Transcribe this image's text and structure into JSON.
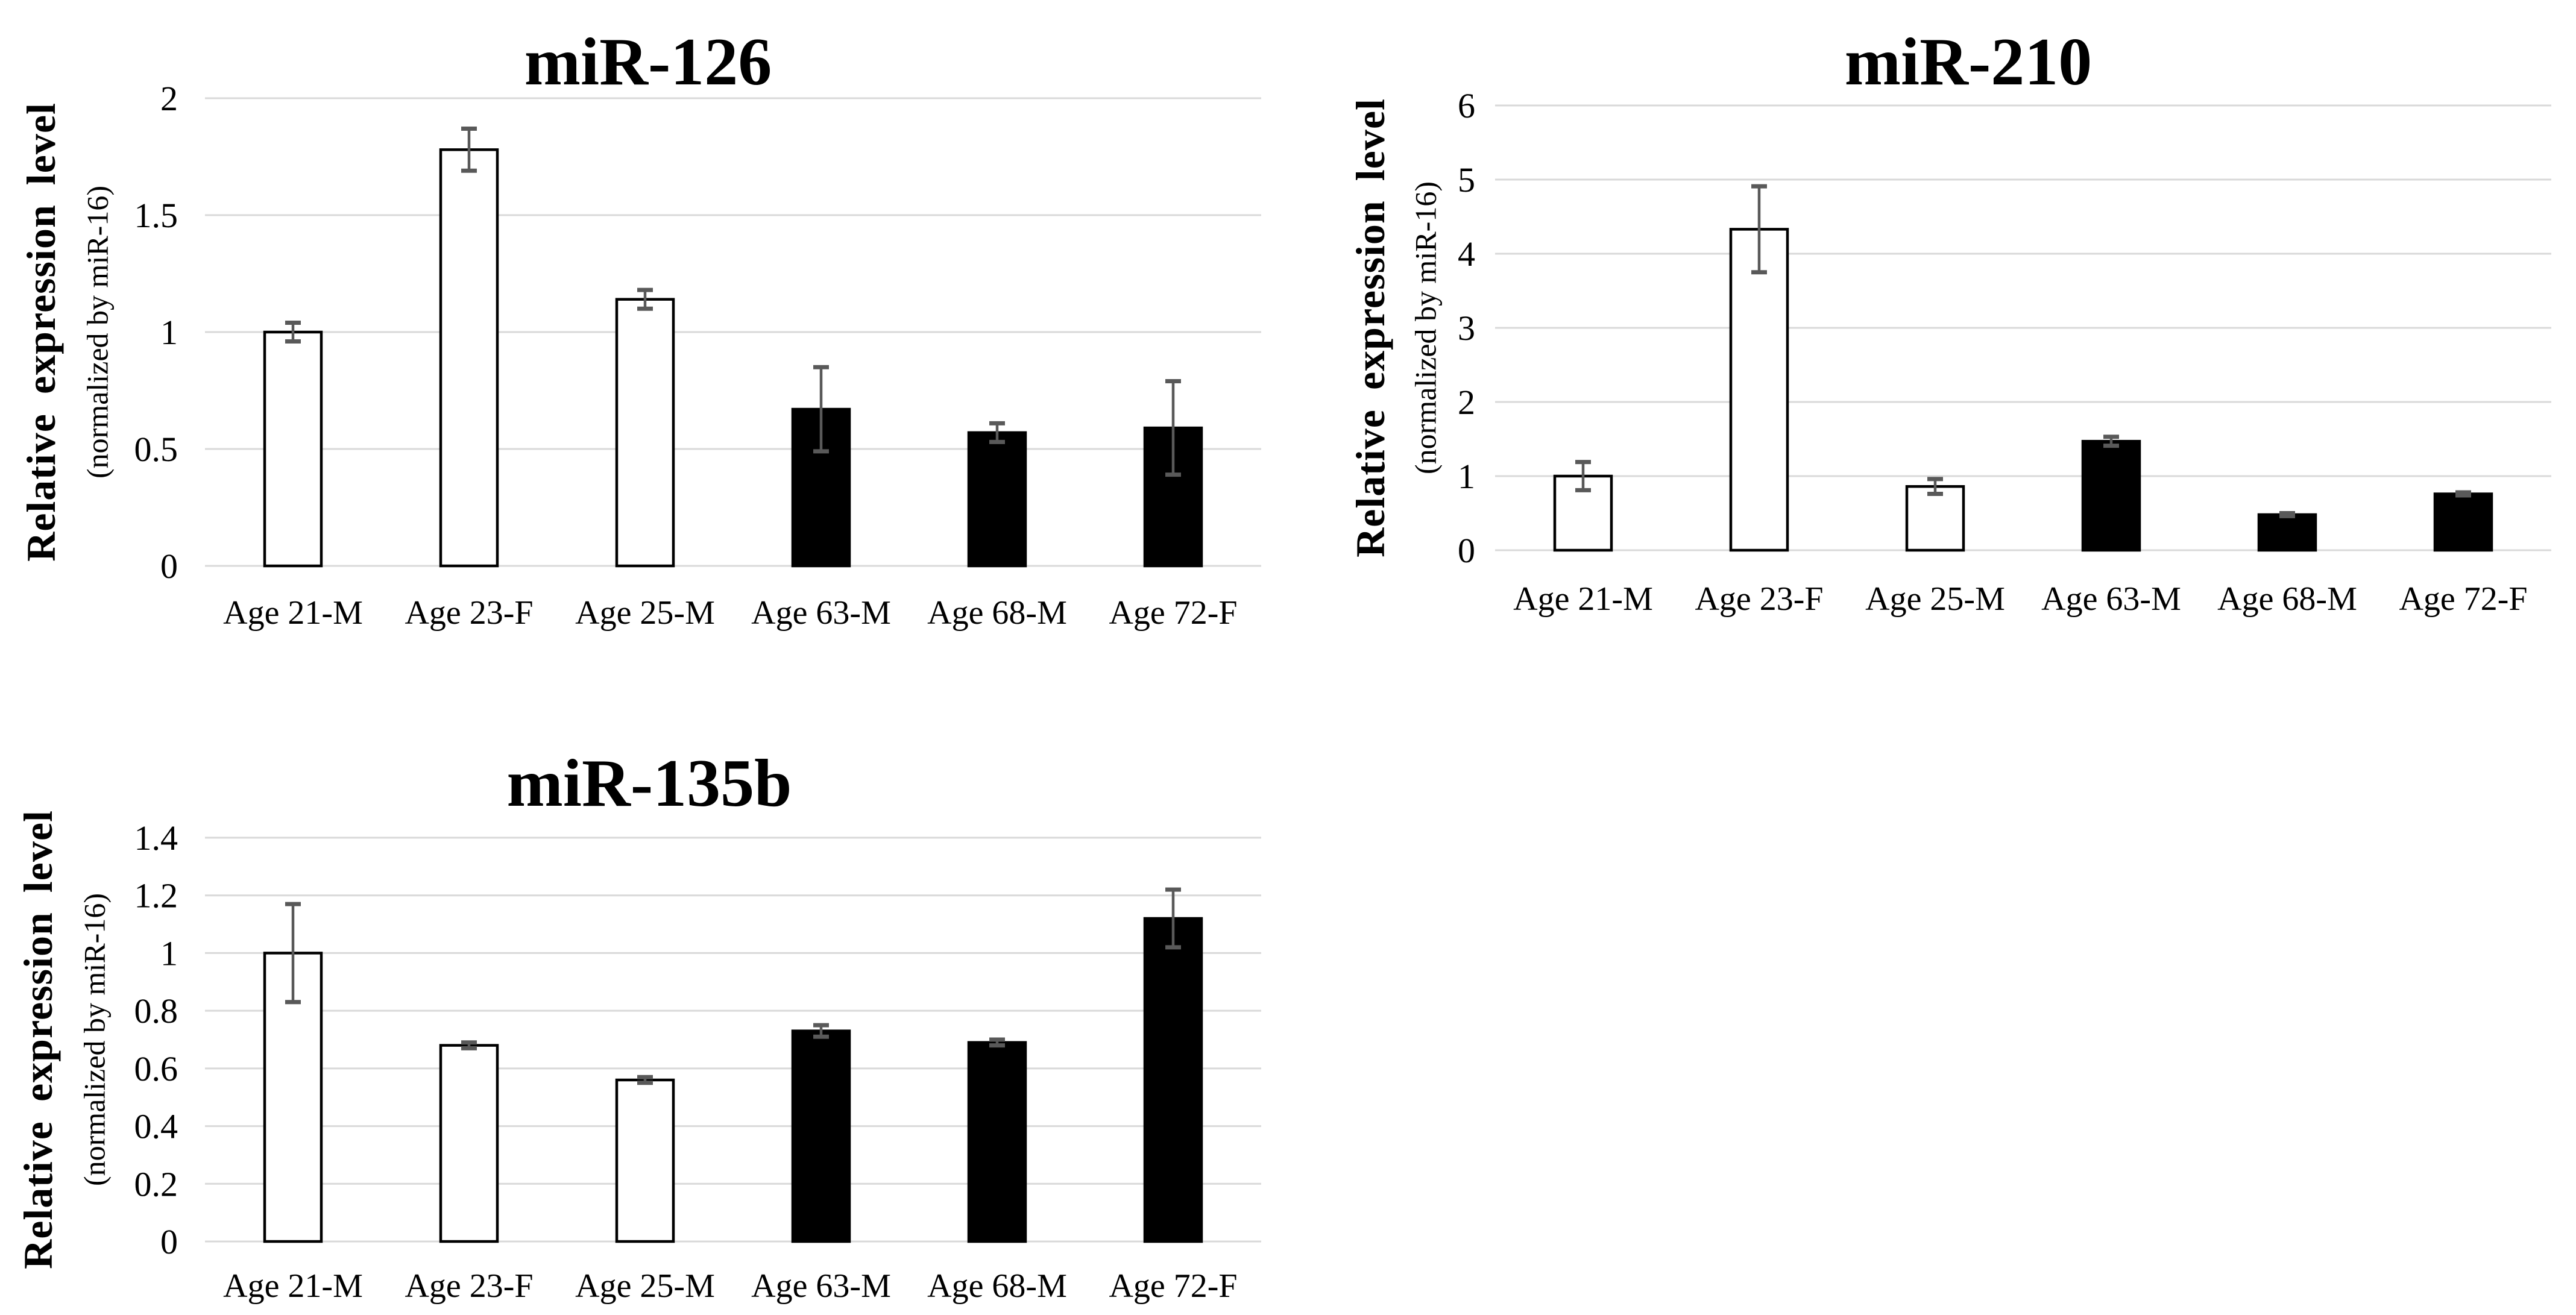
{
  "figure": {
    "background": "#ffffff",
    "description_charts": [
      "miR-126",
      "miR-210",
      "miR-135b"
    ]
  },
  "style": {
    "bar_border_color": "#000000",
    "young_fill": "#ffffff",
    "old_fill": "#000000",
    "error_bar_color": "#595959",
    "gridline_color": "#d9d9d9",
    "text_color": "#000000"
  },
  "chart_data": [
    {
      "type": "bar",
      "title": "miR-126",
      "ylabel": "Relative expression level",
      "ylabel_sub": "(normalized by miR-16)",
      "xlabel": "",
      "categories": [
        "Age 21-M",
        "Age 23-F",
        "Age 25-M",
        "Age 63-M",
        "Age 68-M",
        "Age 72-F"
      ],
      "values": [
        1.0,
        1.78,
        1.14,
        0.67,
        0.57,
        0.59
      ],
      "errors": [
        0.04,
        0.09,
        0.04,
        0.18,
        0.04,
        0.2
      ],
      "groups": [
        "young",
        "young",
        "young",
        "old",
        "old",
        "old"
      ],
      "ylim": [
        0,
        2
      ],
      "yticks": [
        2,
        1.5,
        1,
        0.5,
        0
      ],
      "grid": true,
      "legend": false
    },
    {
      "type": "bar",
      "title": "miR-210",
      "ylabel": "Relative expression level",
      "ylabel_sub": "(normalized by miR-16)",
      "xlabel": "",
      "categories": [
        "Age 21-M",
        "Age 23-F",
        "Age 25-M",
        "Age 63-M",
        "Age 68-M",
        "Age 72-F"
      ],
      "values": [
        1.0,
        4.33,
        0.86,
        1.47,
        0.48,
        0.76
      ],
      "errors": [
        0.19,
        0.58,
        0.1,
        0.06,
        0.02,
        0.02
      ],
      "groups": [
        "young",
        "young",
        "young",
        "old",
        "old",
        "old"
      ],
      "ylim": [
        0,
        6
      ],
      "yticks": [
        6,
        5,
        4,
        3,
        2,
        1,
        0
      ],
      "grid": true,
      "legend": false
    },
    {
      "type": "bar",
      "title": "miR-135b",
      "ylabel": "Relative expression level",
      "ylabel_sub": "(normalized by miR-16)",
      "xlabel": "",
      "categories": [
        "Age 21-M",
        "Age 23-F",
        "Age 25-M",
        "Age 63-M",
        "Age 68-M",
        "Age 72-F"
      ],
      "values": [
        1.0,
        0.68,
        0.56,
        0.73,
        0.69,
        1.12
      ],
      "errors": [
        0.17,
        0.01,
        0.01,
        0.02,
        0.01,
        0.1
      ],
      "groups": [
        "young",
        "young",
        "young",
        "old",
        "old",
        "old"
      ],
      "ylim": [
        0,
        1.4
      ],
      "yticks": [
        1.4,
        1.2,
        1,
        0.8,
        0.6,
        0.4,
        0.2,
        0
      ],
      "grid": true,
      "legend": false
    }
  ]
}
